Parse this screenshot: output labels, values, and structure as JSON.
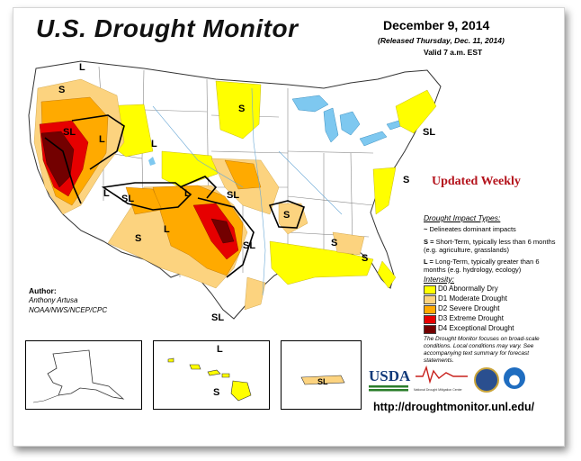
{
  "header": {
    "title": "U.S. Drought Monitor",
    "date": "December 9, 2014",
    "released": "(Released Thursday, Dec. 11, 2014)",
    "valid": "Valid 7 a.m. EST"
  },
  "banner": "Updated Weekly",
  "impact_types": {
    "title": "Drought Impact Types:",
    "items": [
      {
        "symbol": "~",
        "text": "Delineates dominant impacts"
      },
      {
        "symbol": "S =",
        "text": "Short-Term, typically less than 6 months (e.g. agriculture, grasslands)"
      },
      {
        "symbol": "L =",
        "text": "Long-Term, typically greater than 6 months (e.g. hydrology, ecology)"
      }
    ]
  },
  "intensity": {
    "title": "Intensity:",
    "levels": [
      {
        "label": "D0 Abnormally Dry",
        "color": "#ffff00"
      },
      {
        "label": "D1 Moderate Drought",
        "color": "#fcd37f"
      },
      {
        "label": "D2 Severe Drought",
        "color": "#ffaa00"
      },
      {
        "label": "D3 Extreme Drought",
        "color": "#e60000"
      },
      {
        "label": "D4 Exceptional Drought",
        "color": "#730000"
      }
    ]
  },
  "note": "The Drought Monitor focuses on broad-scale conditions. Local conditions may vary. See accompanying text summary for forecast statements.",
  "author": {
    "heading": "Author:",
    "name": "Anthony Artusa",
    "org": "NOAA/NWS/NCEP/CPC"
  },
  "map_labels": {
    "L": "L",
    "S": "S",
    "SL": "SL"
  },
  "logos": {
    "usda": "USDA",
    "ndmc": "National Drought Mitigation Center"
  },
  "url": "http://droughtmonitor.unl.edu/"
}
